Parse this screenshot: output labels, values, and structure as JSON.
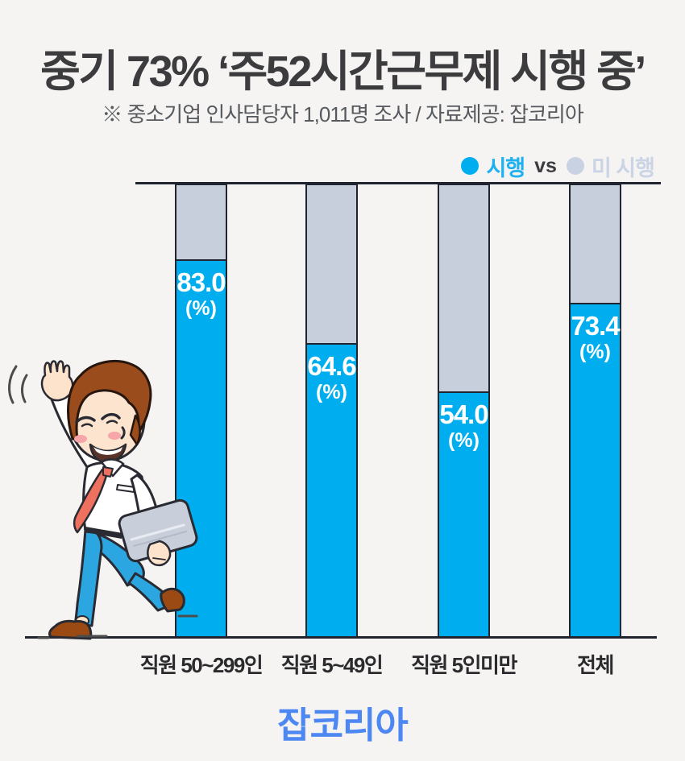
{
  "header": {
    "title": "중기 73% ‘주52시간근무제 시행 중’",
    "subtitle": "※ 중소기업 인사담당자 1,011명 조사 / 자료제공: 잡코리아"
  },
  "legend": {
    "items": [
      {
        "label": "시행",
        "dot_color": "#00aeef",
        "text_color": "#1fb1ef"
      },
      {
        "label": "미 시행",
        "dot_color": "#c9d2e2",
        "text_color": "#cbd4e4"
      }
    ],
    "separator": "vs"
  },
  "chart_data": {
    "type": "bar",
    "stacked": true,
    "categories": [
      "직원 50~299인",
      "직원 5~49인",
      "직원 5인미만",
      "전체"
    ],
    "series": [
      {
        "name": "시행",
        "values": [
          83.0,
          64.6,
          54.0,
          73.4
        ],
        "color": "#00aeef"
      },
      {
        "name": "미 시행",
        "values": [
          17.0,
          35.4,
          46.0,
          26.6
        ],
        "color": "#c7cfdd"
      }
    ],
    "value_labels": [
      "83.0",
      "64.6",
      "54.0",
      "73.4"
    ],
    "unit_label": "(%)",
    "ylim": [
      0,
      100
    ],
    "value_text_color": "#ffffff",
    "outline_color": "#20242e",
    "grid": false,
    "legend_position": "top-right"
  },
  "footer": {
    "logo_text": "잡코리아",
    "logo_color": "#4c87f2"
  }
}
